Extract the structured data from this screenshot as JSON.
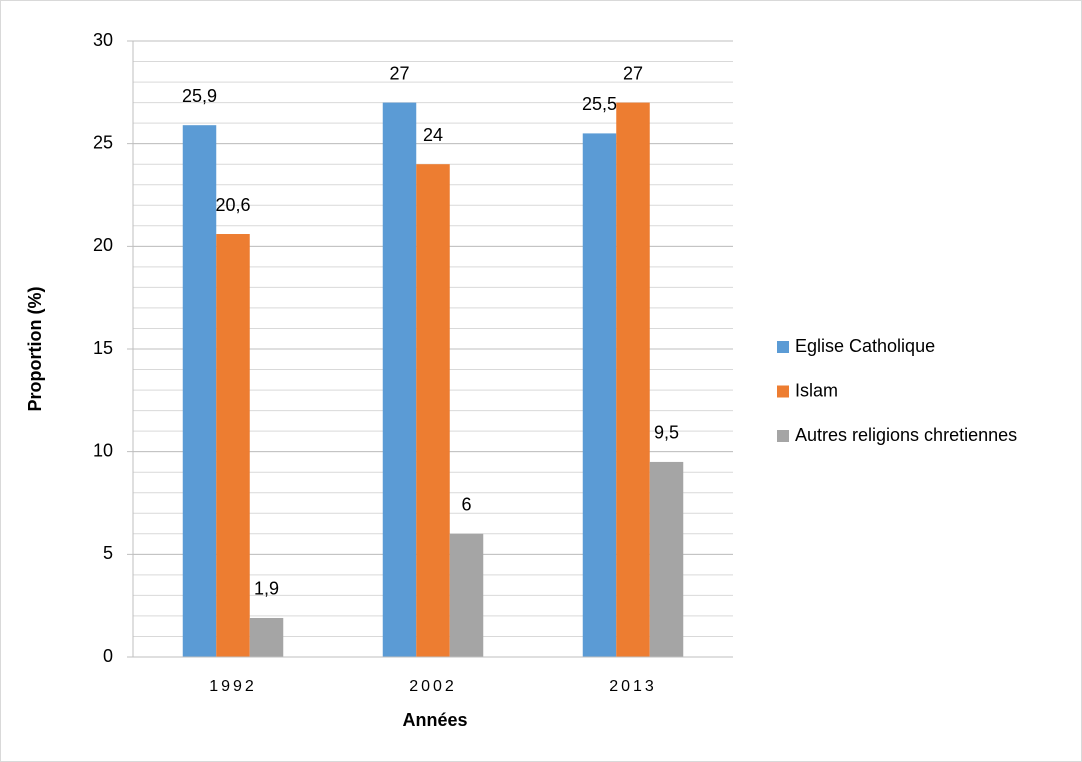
{
  "chart_data": {
    "type": "bar",
    "categories": [
      "1992",
      "2002",
      "2013"
    ],
    "series": [
      {
        "name": "Eglise Catholique",
        "color": "#5b9bd5",
        "values": [
          25.9,
          27,
          25.5
        ],
        "value_labels": [
          "25,9",
          "27",
          "25,5"
        ]
      },
      {
        "name": "Islam",
        "color": "#ed7d31",
        "values": [
          20.6,
          24,
          27
        ],
        "value_labels": [
          "20,6",
          "24",
          "27"
        ]
      },
      {
        "name": "Autres religions chretiennes",
        "color": "#a5a5a5",
        "values": [
          1.9,
          6,
          9.5
        ],
        "value_labels": [
          "1,9",
          "6",
          "9,5"
        ]
      }
    ],
    "ylim": [
      0,
      30
    ],
    "yticks": [
      0,
      5,
      10,
      15,
      20,
      25,
      30
    ],
    "minor_grid": 1,
    "grid": true,
    "legend": "right",
    "xlabel": "Années",
    "ylabel": "Proportion (%)"
  }
}
